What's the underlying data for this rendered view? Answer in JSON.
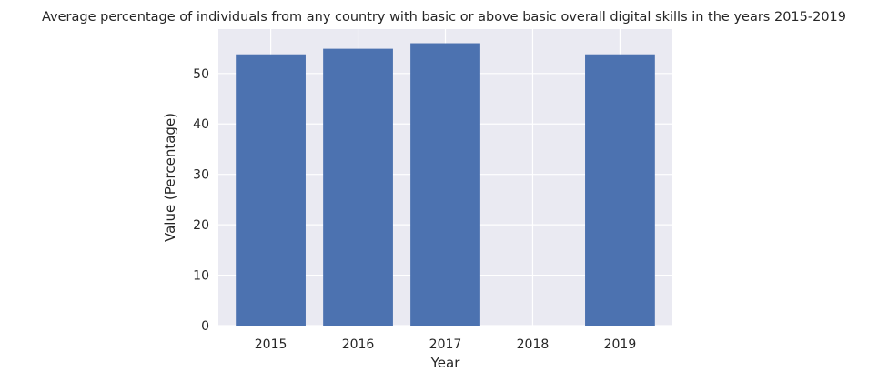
{
  "chart_data": {
    "type": "bar",
    "title": "Average percentage of individuals from any country with basic or above basic overall digital skills in the years 2015-2019",
    "xlabel": "Year",
    "ylabel": "Value (Percentage)",
    "categories": [
      "2015",
      "2016",
      "2017",
      "2018",
      "2019"
    ],
    "values": [
      53.8,
      54.9,
      56.0,
      null,
      53.8
    ],
    "ylim": [
      0,
      58.8
    ],
    "yticks": [
      0,
      10,
      20,
      30,
      40,
      50
    ],
    "ytick_labels": [
      "0",
      "10",
      "20",
      "30",
      "40",
      "50"
    ],
    "grid": true,
    "colors": {
      "bar": "#4c72b0",
      "plot_background": "#eaeaf2",
      "grid": "#ffffff",
      "text": "#262626"
    }
  }
}
